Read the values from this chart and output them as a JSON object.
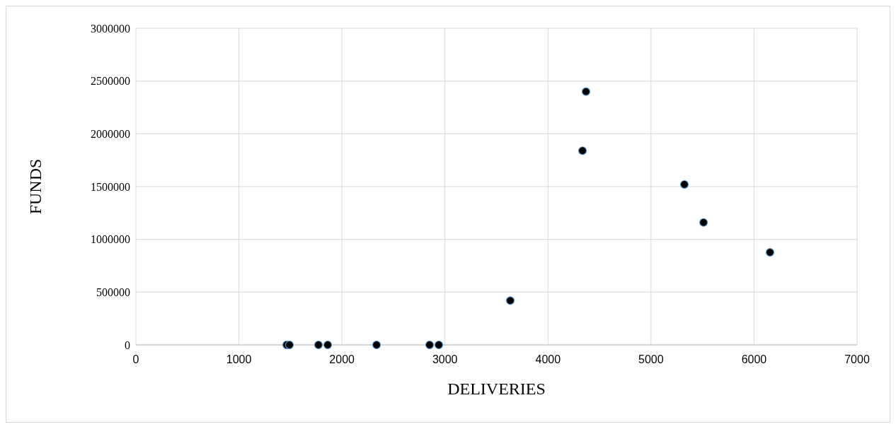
{
  "chart_data": {
    "type": "scatter",
    "xlabel": "DELIVERIES",
    "ylabel": "FUNDS",
    "x": [
      1463,
      1491,
      1772,
      1862,
      2336,
      2851,
      2940,
      3634,
      4335,
      4369,
      5324,
      5510,
      6155
    ],
    "series": [
      {
        "color": "#000000",
        "values": [
          0,
          0,
          0,
          0,
          0,
          0,
          0,
          420000,
          1840000,
          2400000,
          1520000,
          1160000,
          877000
        ]
      }
    ],
    "xlim": [
      0,
      7000
    ],
    "xticks": [
      0,
      1000,
      2000,
      3000,
      4000,
      5000,
      6000,
      7000
    ],
    "ylim": [
      0,
      3000000
    ],
    "yticks": [
      0,
      500000,
      1000000,
      1500000,
      2000000,
      2500000,
      3000000
    ],
    "grid": true,
    "marker": "circle"
  }
}
